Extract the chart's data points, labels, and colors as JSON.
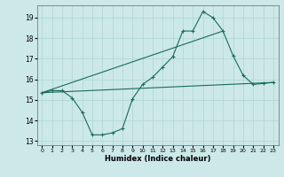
{
  "xlabel": "Humidex (Indice chaleur)",
  "background_color": "#cce8e8",
  "grid_color": "#aed4d4",
  "line_color": "#1a6b5a",
  "xlim": [
    -0.5,
    23.5
  ],
  "ylim": [
    12.8,
    19.6
  ],
  "yticks": [
    13,
    14,
    15,
    16,
    17,
    18,
    19
  ],
  "xticks": [
    0,
    1,
    2,
    3,
    4,
    5,
    6,
    7,
    8,
    9,
    10,
    11,
    12,
    13,
    14,
    15,
    16,
    17,
    18,
    19,
    20,
    21,
    22,
    23
  ],
  "series1_x": [
    0,
    1,
    2,
    3,
    4,
    5,
    6,
    7,
    8,
    9,
    10,
    11,
    12,
    13,
    14,
    15,
    16,
    17,
    18,
    19,
    20,
    21,
    22,
    23
  ],
  "series1_y": [
    15.35,
    15.45,
    15.45,
    15.1,
    14.4,
    13.3,
    13.3,
    13.4,
    13.6,
    15.05,
    15.75,
    16.1,
    16.6,
    17.1,
    18.35,
    18.35,
    19.3,
    19.0,
    18.35,
    17.15,
    16.2,
    15.75,
    15.8,
    15.85
  ],
  "series2_x": [
    0,
    23
  ],
  "series2_y": [
    15.35,
    15.85
  ],
  "series3_x": [
    0,
    18
  ],
  "series3_y": [
    15.35,
    18.35
  ]
}
